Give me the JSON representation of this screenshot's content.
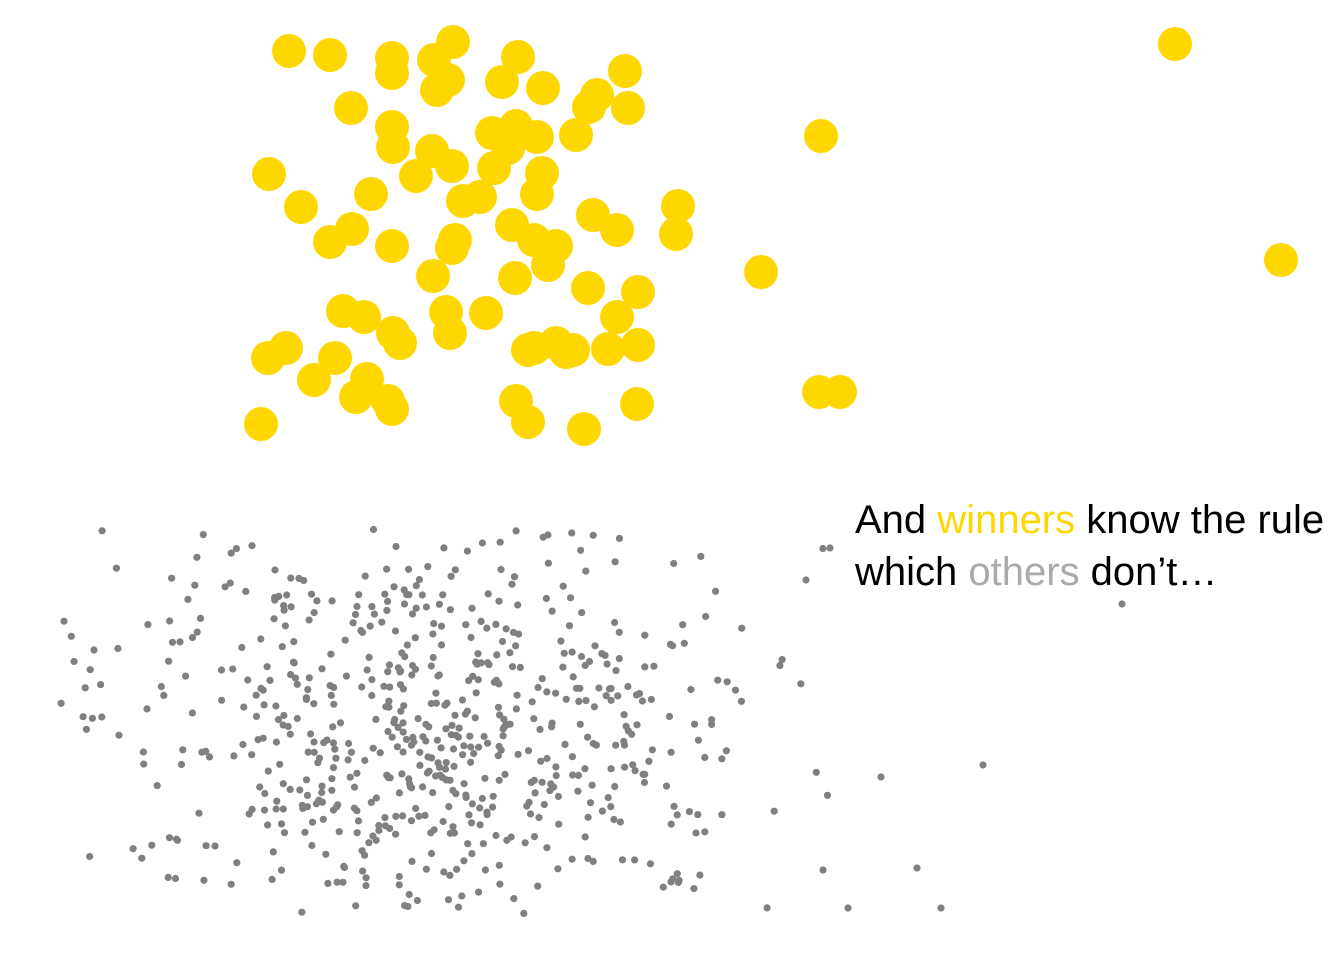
{
  "caption": {
    "line1": {
      "part1": "And ",
      "highlight": "winners",
      "part2": " know the rule"
    },
    "line2": {
      "part1": "which ",
      "highlight": "others",
      "part2": " don’t…"
    }
  },
  "colors": {
    "background": "#ffffff",
    "winner": "#FFD700",
    "winner_text": "#FFD700",
    "others_dot": "#808080",
    "others_text": "#AAAAAA",
    "text": "#000000"
  },
  "figure": {
    "winners": {
      "shape": "large yellow dots",
      "count": 85
    },
    "others": {
      "shape": "small gray dots",
      "count": 650
    }
  }
}
